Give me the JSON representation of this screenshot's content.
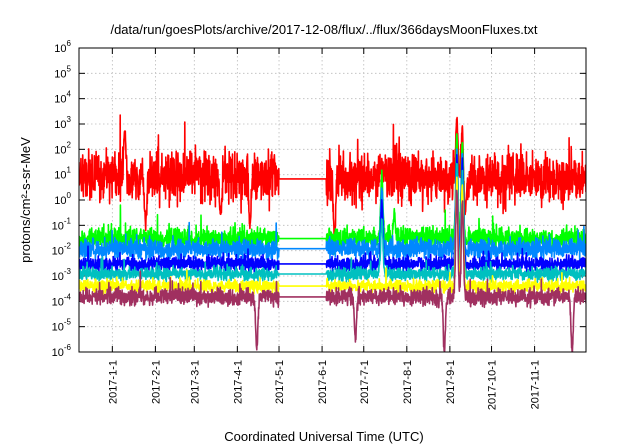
{
  "chart_data": {
    "type": "line",
    "title": "/data/run/goesPlots/archive/2017-12-08/flux/../flux/366daysMoonFluxes.txt",
    "xlabel": "Coordinated Universal Time (UTC)",
    "ylabel": "protons/cm²-s-sr-MeV",
    "xlim": [
      "2016-12-08",
      "2017-12-08"
    ],
    "ylim": [
      1e-06,
      1000000.0
    ],
    "yscale": "log",
    "grid": true,
    "x_ticks": [
      "2017-1-1",
      "2017-2-1",
      "2017-3-1",
      "2017-4-1",
      "2017-5-1",
      "2017-6-1",
      "2017-7-1",
      "2017-8-1",
      "2017-9-1",
      "2017-10-1",
      "2017-11-1"
    ],
    "y_ticks": [
      {
        "mant": "10",
        "exp": "-6",
        "v": -6
      },
      {
        "mant": "10",
        "exp": "-5",
        "v": -5
      },
      {
        "mant": "10",
        "exp": "-4",
        "v": -4
      },
      {
        "mant": "10",
        "exp": "-3",
        "v": -3
      },
      {
        "mant": "10",
        "exp": "-2",
        "v": -2
      },
      {
        "mant": "10",
        "exp": "-1",
        "v": -1
      },
      {
        "mant": "10",
        "exp": "0",
        "v": 0
      },
      {
        "mant": "10",
        "exp": "1",
        "v": 1
      },
      {
        "mant": "10",
        "exp": "2",
        "v": 2
      },
      {
        "mant": "10",
        "exp": "3",
        "v": 3
      },
      {
        "mant": "10",
        "exp": "4",
        "v": 4
      },
      {
        "mant": "10",
        "exp": "5",
        "v": 5
      },
      {
        "mant": "10",
        "exp": "6",
        "v": 6
      }
    ],
    "data_gap": [
      "2017-05-01",
      "2017-06-04"
    ],
    "series": [
      {
        "color": "#ff0000",
        "base": 8,
        "noise": 1.4,
        "features": [
          {
            "x": "2017-01-10",
            "y": 700
          },
          {
            "x": "2017-01-25",
            "y": 0.1
          },
          {
            "x": "2017-03-20",
            "y": 0.2
          },
          {
            "x": "2017-04-10",
            "y": 0.1
          },
          {
            "x": "2017-06-10",
            "y": 0.03
          },
          {
            "x": "2017-07-14",
            "y": 30
          },
          {
            "x": "2017-09-06",
            "y": 2000
          },
          {
            "x": "2017-09-10",
            "y": 800
          },
          {
            "x": "2017-09-12",
            "y": 0.3
          }
        ]
      },
      {
        "color": "#00ff00",
        "base": 0.03,
        "noise": 0.6,
        "features": [
          {
            "x": "2017-07-14",
            "y": 10
          },
          {
            "x": "2017-07-23",
            "y": 0.3
          },
          {
            "x": "2017-09-06",
            "y": 300
          },
          {
            "x": "2017-09-10",
            "y": 200
          },
          {
            "x": "2017-09-13",
            "y": 0.02
          }
        ]
      },
      {
        "color": "#0088ff",
        "base": 0.012,
        "noise": 0.55,
        "features": [
          {
            "x": "2017-07-14",
            "y": 3
          },
          {
            "x": "2017-09-06",
            "y": 100
          },
          {
            "x": "2017-09-10",
            "y": 60
          },
          {
            "x": "2017-09-13",
            "y": 0.008
          }
        ]
      },
      {
        "color": "#0000ff",
        "base": 0.003,
        "noise": 0.4,
        "features": [
          {
            "x": "2017-07-14",
            "y": 0.8
          },
          {
            "x": "2017-09-06",
            "y": 50
          },
          {
            "x": "2017-09-10",
            "y": 30
          }
        ]
      },
      {
        "color": "#00c0c0",
        "base": 0.0012,
        "noise": 0.35,
        "features": [
          {
            "x": "2017-07-14",
            "y": 0.2
          },
          {
            "x": "2017-09-06",
            "y": 20
          },
          {
            "x": "2017-09-10",
            "y": 10
          }
        ]
      },
      {
        "color": "#ffff00",
        "base": 0.0004,
        "noise": 0.35,
        "features": [
          {
            "x": "2017-09-06",
            "y": 8
          },
          {
            "x": "2017-09-10",
            "y": 3
          }
        ]
      },
      {
        "color": "#a03060",
        "base": 0.00015,
        "noise": 0.45,
        "features": [
          {
            "x": "2017-04-15",
            "y": 1.5e-06
          },
          {
            "x": "2017-06-25",
            "y": 3e-06
          },
          {
            "x": "2017-08-28",
            "y": 1e-06
          },
          {
            "x": "2017-09-06",
            "y": 3
          },
          {
            "x": "2017-09-10",
            "y": 1
          },
          {
            "x": "2017-11-28",
            "y": 1e-06
          }
        ]
      }
    ]
  }
}
